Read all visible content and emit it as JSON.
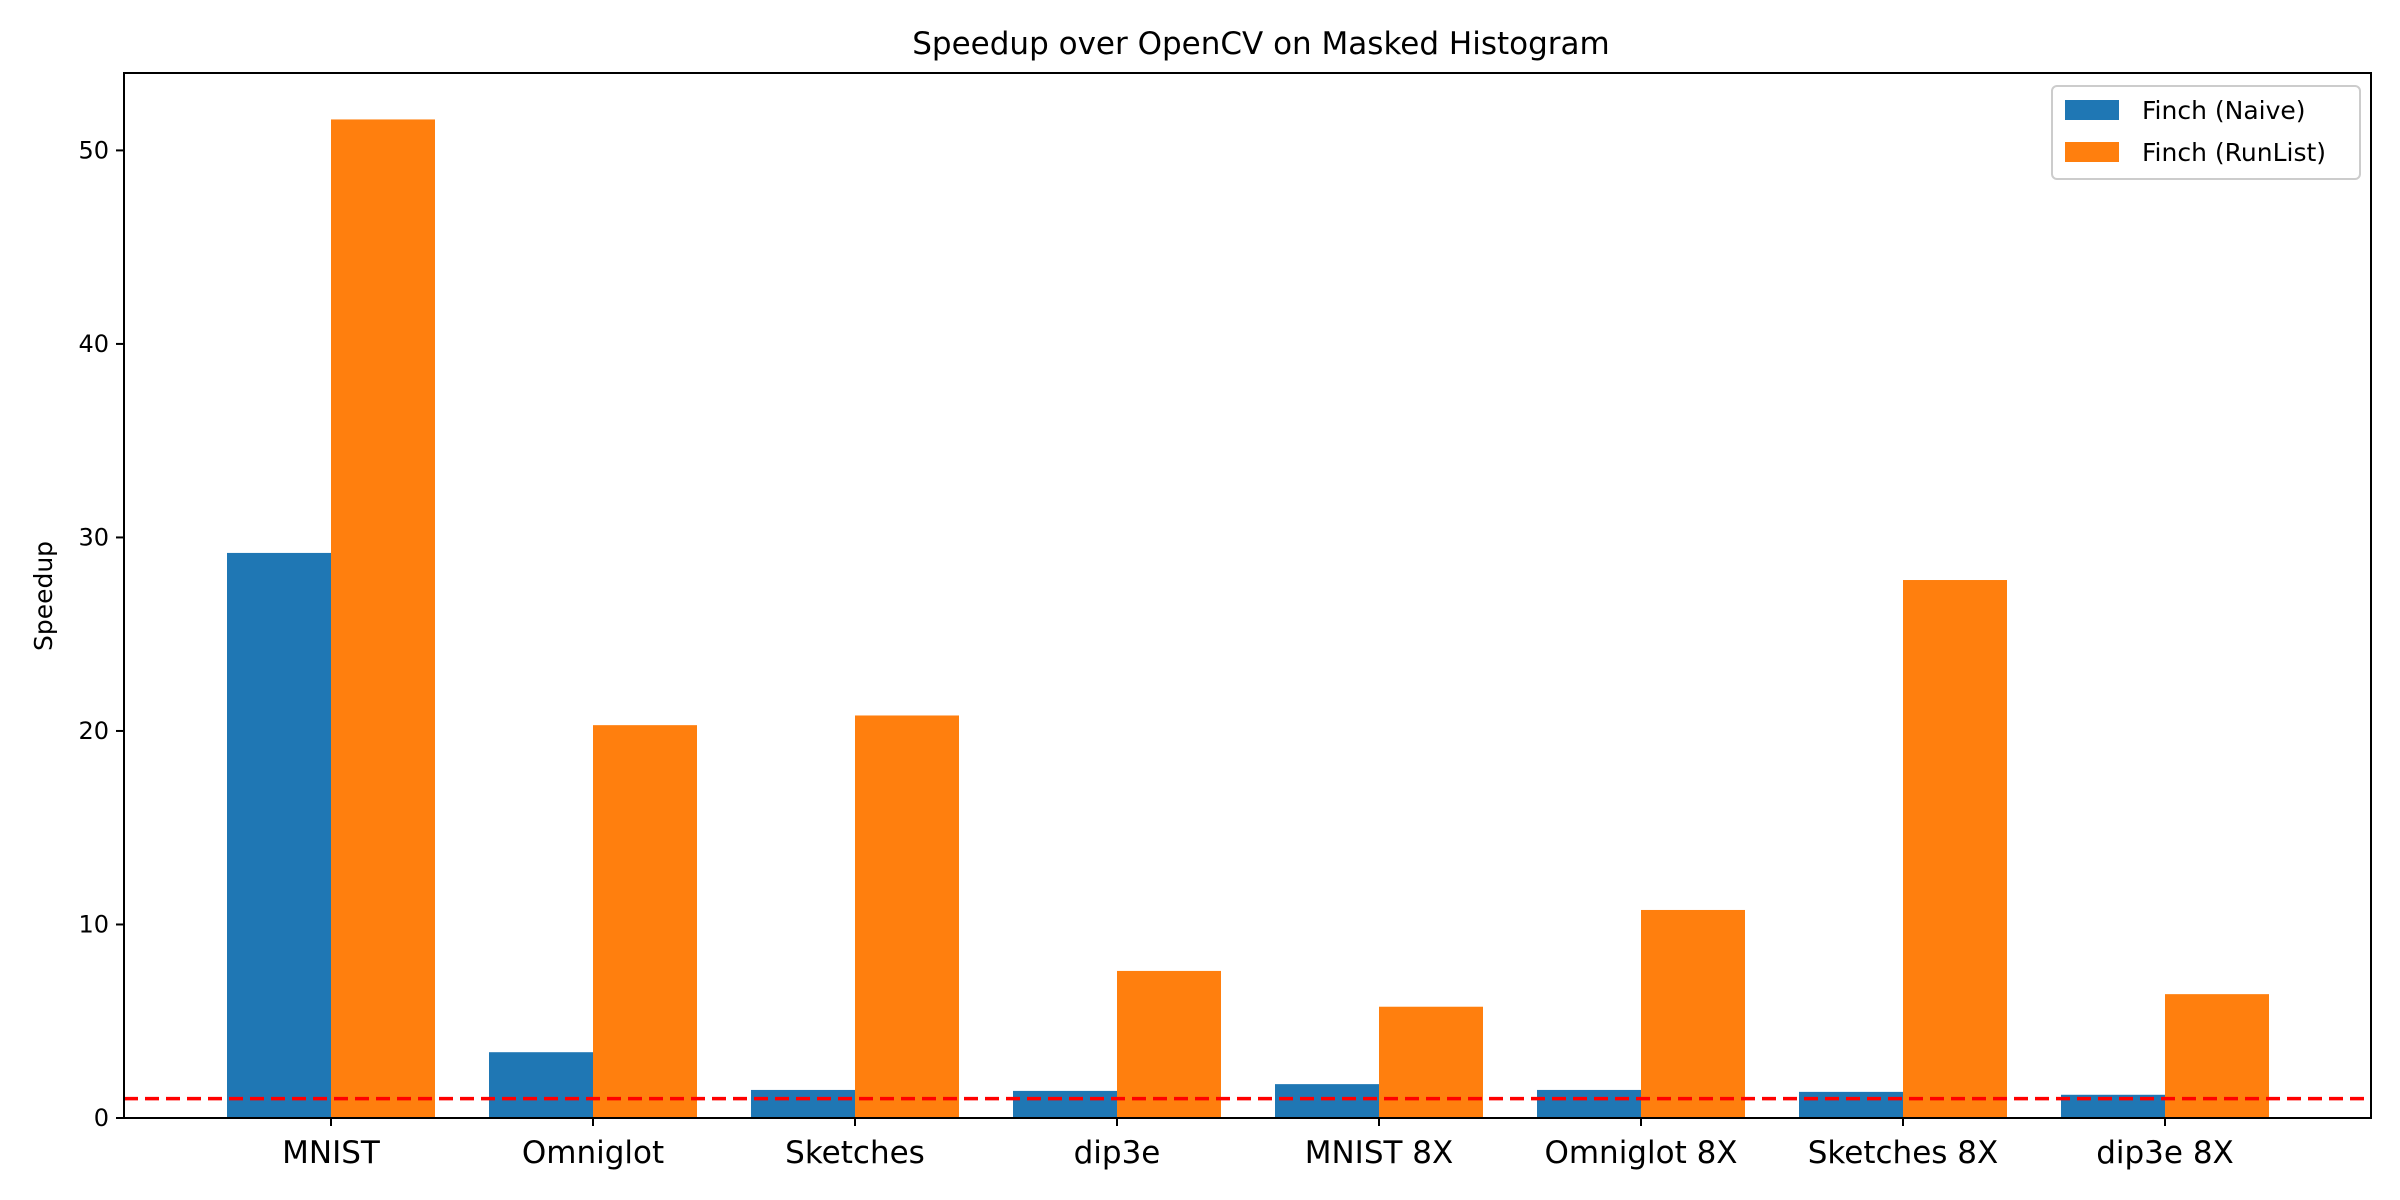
{
  "chart_data": {
    "type": "bar",
    "title": "Speedup over OpenCV on Masked Histogram",
    "xlabel": "",
    "ylabel": "Speedup",
    "categories": [
      "MNIST",
      "Omniglot",
      "Sketches",
      "dip3e",
      "MNIST 8X",
      "Omniglot 8X",
      "Sketches 8X",
      "dip3e 8X"
    ],
    "series": [
      {
        "name": "Finch (Naive)",
        "color": "#1f77b4",
        "values": [
          29.2,
          3.4,
          1.45,
          1.4,
          1.75,
          1.45,
          1.35,
          1.2
        ]
      },
      {
        "name": "Finch (RunList)",
        "color": "#ff7f0e",
        "values": [
          51.6,
          20.3,
          20.8,
          7.6,
          5.75,
          10.75,
          27.8,
          6.4
        ]
      }
    ],
    "ylim": [
      0,
      54
    ],
    "yticks": [
      0,
      10,
      20,
      30,
      40,
      50
    ],
    "reference_line": {
      "value": 1,
      "style": "dashed",
      "color": "#ff0000"
    },
    "legend_position": "top-right",
    "grid": false
  }
}
